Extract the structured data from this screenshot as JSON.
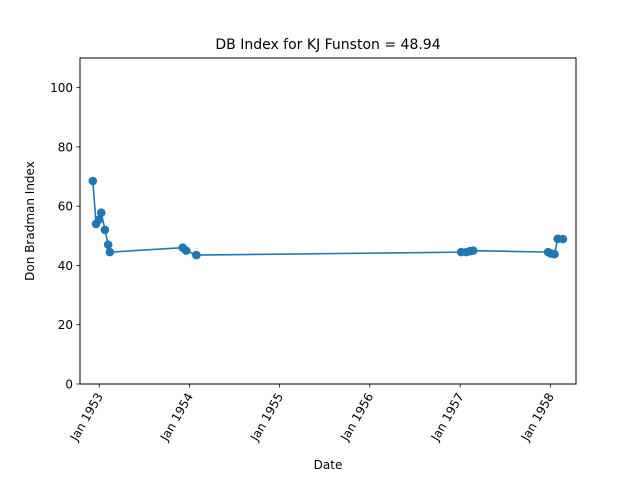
{
  "chart_data": {
    "type": "line",
    "title": "DB Index for KJ Funston = 48.94",
    "xlabel": "Date",
    "ylabel": "Don Bradman Index",
    "ylim": [
      0,
      110
    ],
    "xlim": [
      "1952-10-15",
      "1958-04-15"
    ],
    "grid": false,
    "series_color": "#1f77b4",
    "x_ticks": [
      {
        "date": "1953-01-01",
        "label": "Jan 1953"
      },
      {
        "date": "1954-01-01",
        "label": "Jan 1954"
      },
      {
        "date": "1955-01-01",
        "label": "Jan 1955"
      },
      {
        "date": "1956-01-01",
        "label": "Jan 1956"
      },
      {
        "date": "1957-01-01",
        "label": "Jan 1957"
      },
      {
        "date": "1958-01-01",
        "label": "Jan 1958"
      }
    ],
    "y_ticks": [
      0,
      20,
      40,
      60,
      80,
      100
    ],
    "series": [
      {
        "points": [
          {
            "x": "1952-12-06",
            "y": 68.5
          },
          {
            "x": "1952-12-19",
            "y": 54.0
          },
          {
            "x": "1952-12-31",
            "y": 55.5
          },
          {
            "x": "1953-01-09",
            "y": 57.8
          },
          {
            "x": "1953-01-24",
            "y": 52.0
          },
          {
            "x": "1953-02-06",
            "y": 47.0
          },
          {
            "x": "1953-02-13",
            "y": 44.5
          },
          {
            "x": "1953-12-05",
            "y": 46.0
          },
          {
            "x": "1953-12-19",
            "y": 45.0
          },
          {
            "x": "1954-01-29",
            "y": 43.5
          },
          {
            "x": "1957-01-05",
            "y": 44.5
          },
          {
            "x": "1957-01-26",
            "y": 44.5
          },
          {
            "x": "1957-02-09",
            "y": 44.8
          },
          {
            "x": "1957-02-23",
            "y": 45.0
          },
          {
            "x": "1957-12-23",
            "y": 44.5
          },
          {
            "x": "1958-01-04",
            "y": 44.0
          },
          {
            "x": "1958-01-18",
            "y": 43.8
          },
          {
            "x": "1958-01-31",
            "y": 49.0
          },
          {
            "x": "1958-02-21",
            "y": 48.9
          }
        ]
      }
    ]
  }
}
